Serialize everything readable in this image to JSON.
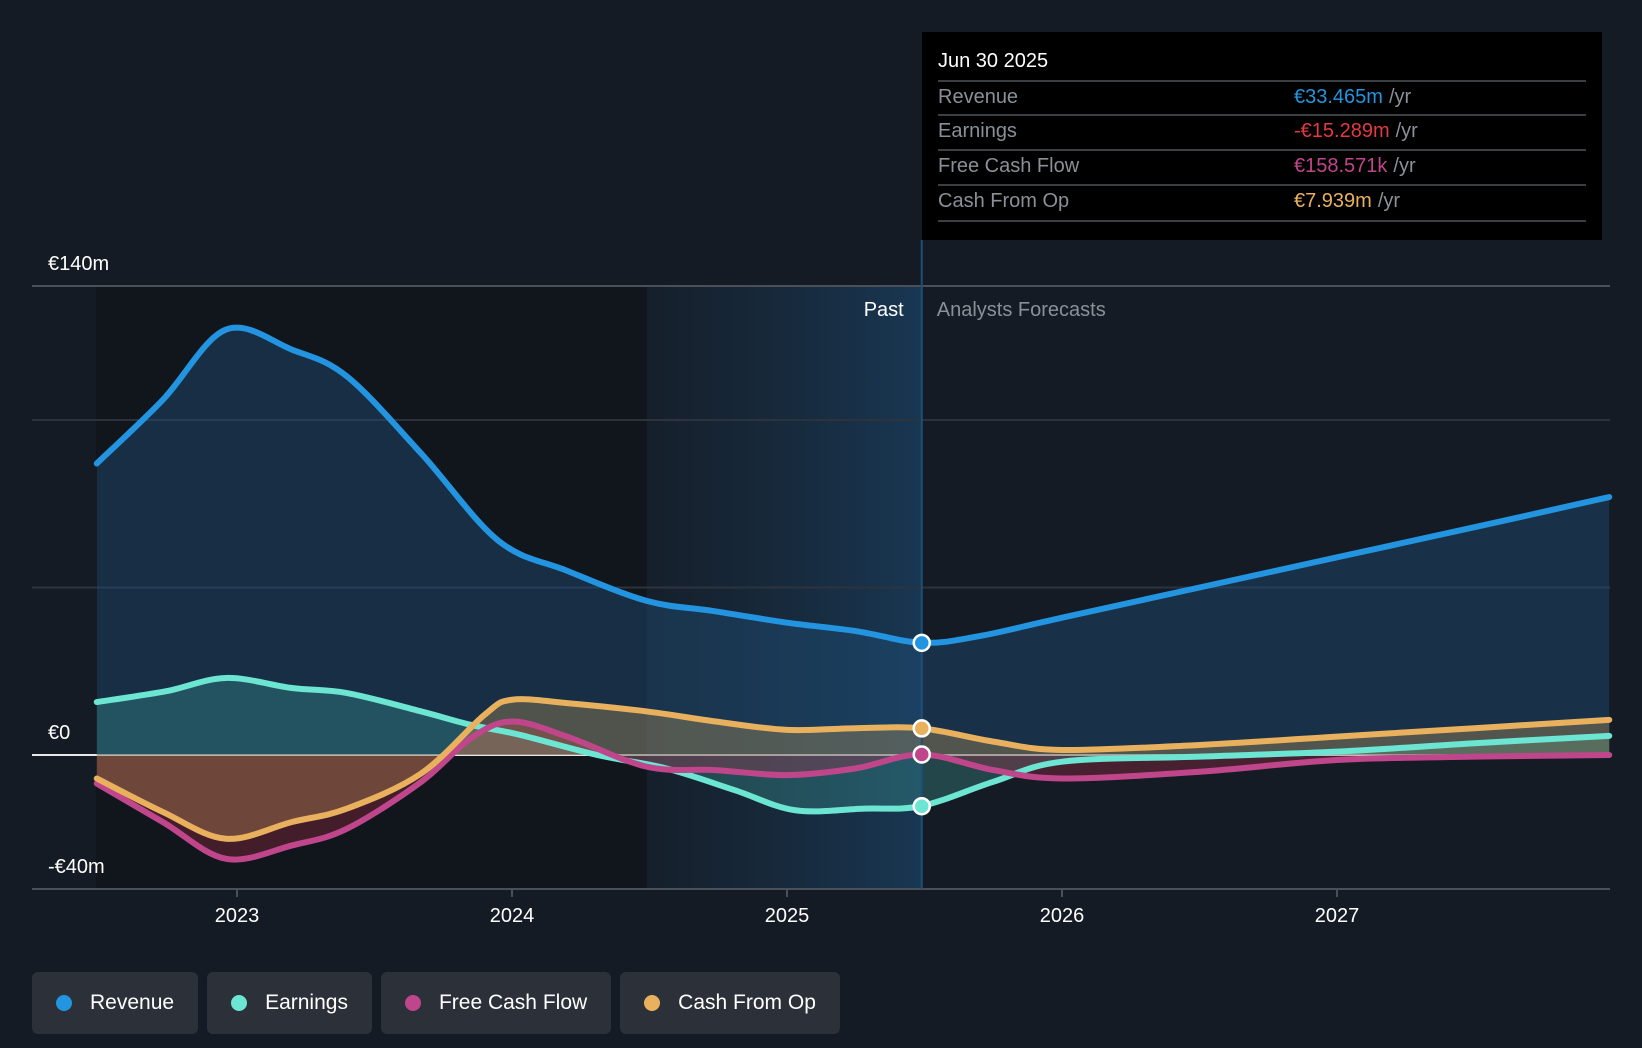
{
  "chart_data": {
    "type": "area",
    "title": "",
    "xlabel": "",
    "ylabel": "",
    "currency": "€",
    "ylim": [
      -40,
      140
    ],
    "y_ticks": [
      {
        "value": 140,
        "label": "€140m"
      },
      {
        "value": 0,
        "label": "€0"
      },
      {
        "value": -40,
        "label": "-€40m"
      }
    ],
    "y_gridlines": [
      140,
      100,
      50,
      0,
      -40
    ],
    "xlim": [
      2022.49,
      2027.99
    ],
    "x_ticks": [
      {
        "value": 2023,
        "label": "2023"
      },
      {
        "value": 2024,
        "label": "2024"
      },
      {
        "value": 2025,
        "label": "2025"
      },
      {
        "value": 2026,
        "label": "2026"
      },
      {
        "value": 2027,
        "label": "2027"
      }
    ],
    "past_highlight_start": 2024.49,
    "divider": 2025.49,
    "regions": {
      "past": "Past",
      "forecast": "Analysts Forecasts"
    },
    "series": [
      {
        "name": "Revenue",
        "color": "#2394df",
        "x": [
          2022.49,
          2022.73,
          2022.96,
          2023.2,
          2023.4,
          2023.67,
          2023.95,
          2024.2,
          2024.49,
          2024.73,
          2025.0,
          2025.25,
          2025.49,
          2025.7,
          2026.0,
          2026.5,
          2027.0,
          2027.5,
          2027.99
        ],
        "values": [
          87,
          106,
          127,
          121,
          113,
          90,
          64,
          55,
          46,
          43,
          39.5,
          37,
          33.5,
          35.5,
          41,
          50,
          59,
          68,
          77
        ]
      },
      {
        "name": "Earnings",
        "color": "#6ce5d2",
        "x": [
          2022.49,
          2022.74,
          2022.96,
          2023.2,
          2023.4,
          2023.67,
          2023.85,
          2024.03,
          2024.31,
          2024.56,
          2024.81,
          2025.03,
          2025.28,
          2025.49,
          2025.75,
          2026.0,
          2026.5,
          2027.0,
          2027.5,
          2027.99
        ],
        "values": [
          15.8,
          19,
          23,
          20,
          18.5,
          13,
          9,
          6,
          0,
          -4,
          -10.5,
          -16.5,
          -16,
          -15.2,
          -8,
          -2,
          -0.5,
          1,
          3.5,
          5.7
        ]
      },
      {
        "name": "Free Cash Flow",
        "color": "#c0468b",
        "x": [
          2022.49,
          2022.73,
          2022.96,
          2023.2,
          2023.4,
          2023.67,
          2023.85,
          2024.0,
          2024.2,
          2024.49,
          2024.74,
          2025.0,
          2025.25,
          2025.49,
          2025.75,
          2026.0,
          2026.5,
          2027.0,
          2027.5,
          2027.99
        ],
        "values": [
          -8.5,
          -20,
          -31,
          -27,
          -22,
          -8,
          5,
          10,
          5.5,
          -3.5,
          -4.5,
          -6,
          -4,
          0.16,
          -4.5,
          -7,
          -5,
          -1.5,
          -0.5,
          0
        ]
      },
      {
        "name": "Cash From Op",
        "color": "#e9b15e",
        "x": [
          2022.49,
          2022.73,
          2022.96,
          2023.2,
          2023.4,
          2023.67,
          2023.9,
          2024.0,
          2024.2,
          2024.49,
          2024.74,
          2025.0,
          2025.25,
          2025.49,
          2025.75,
          2026.0,
          2026.5,
          2027.0,
          2027.5,
          2027.99
        ],
        "values": [
          -7,
          -17,
          -25,
          -20,
          -16,
          -5.5,
          12,
          16.5,
          15.5,
          13,
          10,
          7.5,
          8,
          7.94,
          4,
          1.5,
          3,
          5.5,
          8,
          10.5
        ]
      }
    ],
    "highlight_point": {
      "x": 2025.49,
      "values": [
        33.465,
        -15.289,
        0.158571,
        7.939
      ]
    }
  },
  "tooltip": {
    "date": "Jun 30 2025",
    "unit": "/yr",
    "rows": [
      {
        "label": "Revenue",
        "value": "€33.465m",
        "color": "#2394df"
      },
      {
        "label": "Earnings",
        "value": "-€15.289m",
        "color": "#e4393e"
      },
      {
        "label": "Free Cash Flow",
        "value": "€158.571k",
        "color": "#c0468b"
      },
      {
        "label": "Cash From Op",
        "value": "€7.939m",
        "color": "#e9b15e"
      }
    ]
  },
  "legend": [
    {
      "label": "Revenue",
      "color": "#2394df"
    },
    {
      "label": "Earnings",
      "color": "#6ce5d2"
    },
    {
      "label": "Free Cash Flow",
      "color": "#c0468b"
    },
    {
      "label": "Cash From Op",
      "color": "#e9b15e"
    }
  ]
}
